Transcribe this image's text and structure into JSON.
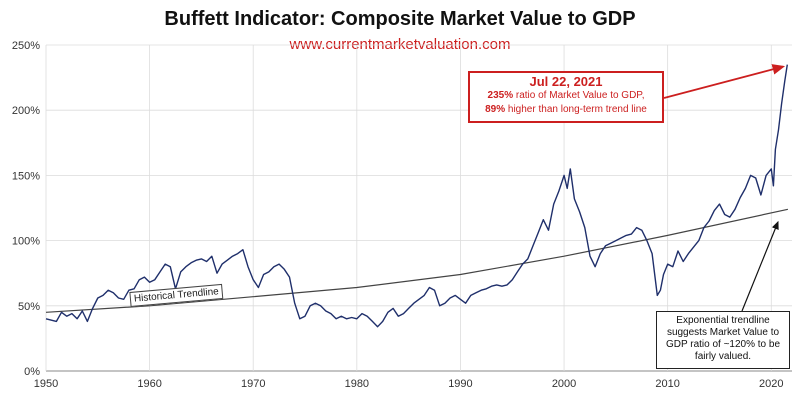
{
  "chart_data": {
    "type": "line",
    "title": "Buffett Indicator: Composite Market Value to GDP",
    "subtitle": "www.currentmarketvaluation.com",
    "xlim": [
      1950,
      2022
    ],
    "ylim": [
      0,
      250
    ],
    "x_ticks": [
      1950,
      1960,
      1970,
      1980,
      1990,
      2000,
      2010,
      2020
    ],
    "y_ticks": [
      {
        "value": 0,
        "label": "0%"
      },
      {
        "value": 50,
        "label": "50%"
      },
      {
        "value": 100,
        "label": "100%"
      },
      {
        "value": 150,
        "label": "150%"
      },
      {
        "value": 200,
        "label": "200%"
      },
      {
        "value": 250,
        "label": "250%"
      }
    ],
    "grid": true,
    "series": [
      {
        "color": "#1f2f6b",
        "points": [
          [
            1950,
            40
          ],
          [
            1951,
            38
          ],
          [
            1951.5,
            45
          ],
          [
            1952,
            42
          ],
          [
            1952.5,
            44
          ],
          [
            1953,
            40
          ],
          [
            1953.5,
            46
          ],
          [
            1954,
            38
          ],
          [
            1954.5,
            48
          ],
          [
            1955,
            56
          ],
          [
            1955.5,
            58
          ],
          [
            1956,
            62
          ],
          [
            1956.5,
            60
          ],
          [
            1957,
            56
          ],
          [
            1957.5,
            55
          ],
          [
            1958,
            62
          ],
          [
            1958.5,
            63
          ],
          [
            1959,
            70
          ],
          [
            1959.5,
            72
          ],
          [
            1960,
            68
          ],
          [
            1960.5,
            70
          ],
          [
            1961,
            76
          ],
          [
            1961.5,
            82
          ],
          [
            1962,
            80
          ],
          [
            1962.5,
            63
          ],
          [
            1963,
            76
          ],
          [
            1963.5,
            80
          ],
          [
            1964,
            83
          ],
          [
            1964.5,
            85
          ],
          [
            1965,
            86
          ],
          [
            1965.5,
            84
          ],
          [
            1966,
            88
          ],
          [
            1966.5,
            75
          ],
          [
            1967,
            82
          ],
          [
            1967.5,
            85
          ],
          [
            1968,
            88
          ],
          [
            1968.5,
            90
          ],
          [
            1969,
            93
          ],
          [
            1969.5,
            80
          ],
          [
            1970,
            70
          ],
          [
            1970.5,
            64
          ],
          [
            1971,
            74
          ],
          [
            1971.5,
            76
          ],
          [
            1972,
            80
          ],
          [
            1972.5,
            82
          ],
          [
            1973,
            78
          ],
          [
            1973.5,
            72
          ],
          [
            1974,
            52
          ],
          [
            1974.5,
            40
          ],
          [
            1975,
            42
          ],
          [
            1975.5,
            50
          ],
          [
            1976,
            52
          ],
          [
            1976.5,
            50
          ],
          [
            1977,
            46
          ],
          [
            1977.5,
            44
          ],
          [
            1978,
            40
          ],
          [
            1978.5,
            42
          ],
          [
            1979,
            40
          ],
          [
            1979.5,
            41
          ],
          [
            1980,
            40
          ],
          [
            1980.5,
            44
          ],
          [
            1981,
            42
          ],
          [
            1981.5,
            38
          ],
          [
            1982,
            34
          ],
          [
            1982.5,
            38
          ],
          [
            1983,
            45
          ],
          [
            1983.5,
            48
          ],
          [
            1984,
            42
          ],
          [
            1984.5,
            44
          ],
          [
            1985,
            48
          ],
          [
            1985.5,
            52
          ],
          [
            1986,
            55
          ],
          [
            1986.5,
            58
          ],
          [
            1987,
            64
          ],
          [
            1987.5,
            62
          ],
          [
            1988,
            50
          ],
          [
            1988.5,
            52
          ],
          [
            1989,
            56
          ],
          [
            1989.5,
            58
          ],
          [
            1990,
            55
          ],
          [
            1990.5,
            52
          ],
          [
            1991,
            58
          ],
          [
            1991.5,
            60
          ],
          [
            1992,
            62
          ],
          [
            1992.5,
            63
          ],
          [
            1993,
            65
          ],
          [
            1993.5,
            66
          ],
          [
            1994,
            65
          ],
          [
            1994.5,
            66
          ],
          [
            1995,
            70
          ],
          [
            1995.5,
            76
          ],
          [
            1996,
            82
          ],
          [
            1996.5,
            86
          ],
          [
            1997,
            96
          ],
          [
            1997.5,
            106
          ],
          [
            1998,
            116
          ],
          [
            1998.5,
            108
          ],
          [
            1999,
            128
          ],
          [
            1999.5,
            138
          ],
          [
            2000,
            150
          ],
          [
            2000.3,
            140
          ],
          [
            2000.6,
            155
          ],
          [
            2001,
            132
          ],
          [
            2001.5,
            122
          ],
          [
            2002,
            110
          ],
          [
            2002.5,
            88
          ],
          [
            2003,
            80
          ],
          [
            2003.5,
            90
          ],
          [
            2004,
            96
          ],
          [
            2004.5,
            98
          ],
          [
            2005,
            100
          ],
          [
            2005.5,
            102
          ],
          [
            2006,
            104
          ],
          [
            2006.5,
            105
          ],
          [
            2007,
            110
          ],
          [
            2007.5,
            108
          ],
          [
            2008,
            100
          ],
          [
            2008.5,
            90
          ],
          [
            2009,
            58
          ],
          [
            2009.3,
            62
          ],
          [
            2009.6,
            74
          ],
          [
            2010,
            82
          ],
          [
            2010.5,
            80
          ],
          [
            2011,
            92
          ],
          [
            2011.5,
            84
          ],
          [
            2012,
            90
          ],
          [
            2012.5,
            95
          ],
          [
            2013,
            100
          ],
          [
            2013.5,
            110
          ],
          [
            2014,
            115
          ],
          [
            2014.5,
            123
          ],
          [
            2015,
            128
          ],
          [
            2015.5,
            120
          ],
          [
            2016,
            118
          ],
          [
            2016.5,
            124
          ],
          [
            2017,
            133
          ],
          [
            2017.5,
            140
          ],
          [
            2018,
            150
          ],
          [
            2018.5,
            148
          ],
          [
            2019,
            135
          ],
          [
            2019.5,
            150
          ],
          [
            2020,
            155
          ],
          [
            2020.2,
            142
          ],
          [
            2020.4,
            170
          ],
          [
            2020.7,
            185
          ],
          [
            2021,
            205
          ],
          [
            2021.3,
            222
          ],
          [
            2021.55,
            235
          ]
        ]
      }
    ],
    "trendline": {
      "label": "Historical Trendline",
      "color": "#444444",
      "points": [
        [
          1950,
          45
        ],
        [
          1960,
          50
        ],
        [
          1970,
          57
        ],
        [
          1980,
          64
        ],
        [
          1990,
          74
        ],
        [
          2000,
          88
        ],
        [
          2010,
          104
        ],
        [
          2021.6,
          124
        ]
      ]
    },
    "annotations": {
      "callout": {
        "date": "Jul 22, 2021",
        "line1_bold": "235%",
        "line1_rest": " ratio of Market Value to GDP,",
        "line2_bold": "89%",
        "line2_rest": " higher than long-term trend line",
        "color": "#cc1f1f"
      },
      "trend_note": "Exponential trendline suggests Market Value to GDP ratio of ~120% to be fairly valued."
    }
  }
}
